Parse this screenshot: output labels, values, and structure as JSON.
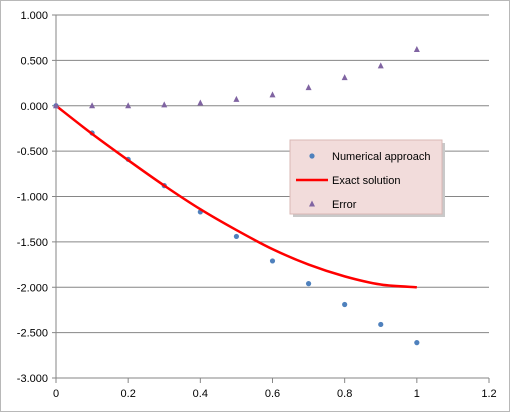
{
  "chart_data": {
    "type": "scatter",
    "title": "",
    "xlabel": "",
    "ylabel": "",
    "xlim": [
      0,
      1.2
    ],
    "ylim": [
      -3.0,
      1.0
    ],
    "x_ticks": [
      "0",
      "0.2",
      "0.4",
      "0.6",
      "0.8",
      "1",
      "1.2"
    ],
    "y_ticks": [
      "1.000",
      "0.500",
      "0.000",
      "-0.500",
      "-1.000",
      "-1.500",
      "-2.000",
      "-2.500",
      "-3.000"
    ],
    "grid": "horizontal",
    "legend": "right",
    "series": [
      {
        "name": "Numerical approach",
        "type": "scatter",
        "marker": "circle",
        "color": "#4f81bd",
        "x": [
          0,
          0.1,
          0.2,
          0.3,
          0.4,
          0.5,
          0.6,
          0.7,
          0.8,
          0.9,
          1.0
        ],
        "y": [
          0.0,
          -0.3,
          -0.59,
          -0.88,
          -1.17,
          -1.44,
          -1.71,
          -1.96,
          -2.19,
          -2.41,
          -2.61
        ]
      },
      {
        "name": "Exact solution",
        "type": "line",
        "color": "#ff0000",
        "x": [
          0,
          0.1,
          0.2,
          0.3,
          0.4,
          0.5,
          0.6,
          0.7,
          0.8,
          0.9,
          1.0
        ],
        "y": [
          0.0,
          -0.31,
          -0.6,
          -0.88,
          -1.14,
          -1.37,
          -1.58,
          -1.75,
          -1.88,
          -1.97,
          -2.0
        ]
      },
      {
        "name": "Error",
        "type": "scatter",
        "marker": "triangle",
        "color": "#8064a2",
        "x": [
          0,
          0.1,
          0.2,
          0.3,
          0.4,
          0.5,
          0.6,
          0.7,
          0.8,
          0.9,
          1.0
        ],
        "y": [
          0.0,
          0.0,
          0.0,
          0.01,
          0.03,
          0.07,
          0.12,
          0.2,
          0.31,
          0.44,
          0.62
        ]
      }
    ],
    "legend_background": "#f2dcdb"
  }
}
